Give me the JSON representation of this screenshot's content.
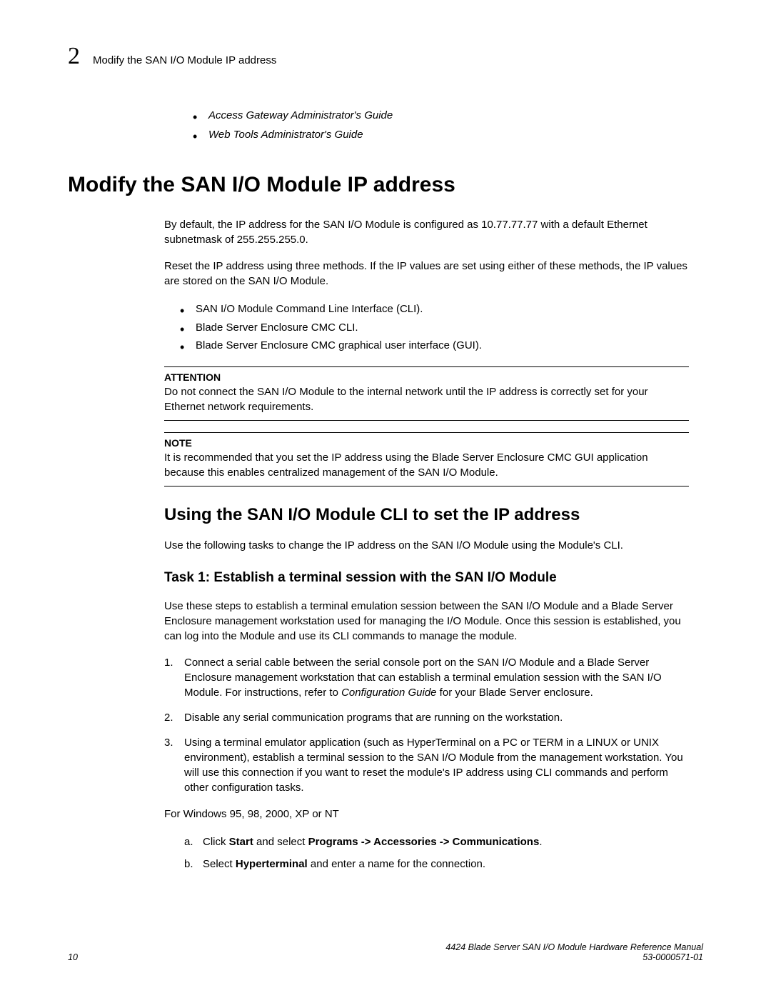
{
  "header": {
    "chapter_num": "2",
    "title": "Modify the SAN I/O Module IP address"
  },
  "intro_bullets": [
    "Access Gateway Administrator's Guide",
    "Web Tools Administrator's Guide"
  ],
  "h1": "Modify the SAN I/O Module IP address",
  "para1": "By default, the IP address for the SAN I/O Module is configured as 10.77.77.77 with a default Ethernet subnetmask of 255.255.255.0.",
  "para2": "Reset the IP address using three methods. If the IP values are set using either of these methods, the IP values are stored on the SAN I/O Module.",
  "methods": [
    "SAN I/O Module Command Line Interface (CLI).",
    "Blade Server Enclosure CMC CLI.",
    "Blade Server Enclosure CMC graphical user interface (GUI)."
  ],
  "attention": {
    "label": "ATTENTION",
    "text": "Do not connect the SAN I/O Module to the internal network until the IP address is correctly set for your Ethernet network requirements."
  },
  "note": {
    "label": "NOTE",
    "text": "It is recommended that you set the IP address using the Blade Server Enclosure CMC GUI application because this enables centralized management of the SAN I/O Module."
  },
  "h2": "Using the SAN I/O Module CLI to set the IP address",
  "para3": "Use the following tasks to change the IP address on the SAN I/O Module using the Module's CLI.",
  "h3": "Task 1: Establish a terminal session with the SAN I/O Module",
  "para4": "Use these steps to establish a terminal emulation session between the SAN I/O Module and a Blade Server Enclosure management workstation used for managing the I/O Module. Once this session is established, you can log into the Module and use its CLI commands to manage the module.",
  "steps": {
    "s1_a": "Connect a serial cable between the serial console port on the SAN I/O Module and a Blade Server Enclosure management workstation that can establish a terminal emulation session with the SAN I/O Module. For instructions, refer to ",
    "s1_i": "Configuration Guide",
    "s1_b": " for your Blade Server enclosure.",
    "s2": "Disable any serial communication programs that are running on the workstation.",
    "s3": "Using a terminal emulator application (such as HyperTerminal on a PC or TERM in a LINUX or UNIX environment), establish a terminal session to the SAN I/O Module from the management workstation. You will use this connection if you want to reset the module's IP address using CLI commands and perform other configuration tasks."
  },
  "para5": "For Windows 95, 98, 2000, XP or NT",
  "substeps": {
    "a_pre": "Click ",
    "a_b1": "Start",
    "a_mid": " and select ",
    "a_b2": "Programs -> Accessories -> Communications",
    "a_post": ".",
    "b_pre": "Select ",
    "b_b1": "Hyperterminal",
    "b_post": " and enter a name for the connection."
  },
  "footer": {
    "page_num": "10",
    "doc_title": "4424 Blade Server SAN I/O Module Hardware Reference Manual",
    "doc_num": "53-0000571-01"
  }
}
